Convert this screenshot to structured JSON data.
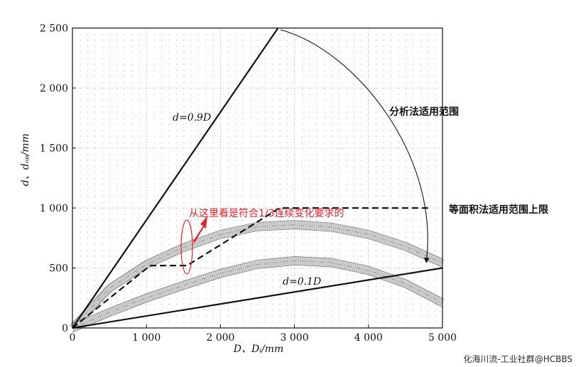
{
  "chart_data": {
    "type": "line",
    "title": "",
    "xlabel": "D、Dᵢ/mm",
    "ylabel": "d、dₒₚ/mm",
    "xlim": [
      0,
      5000
    ],
    "ylim": [
      0,
      2500
    ],
    "x_ticks": [
      "0",
      "1 000",
      "2 000",
      "3 000",
      "4 000",
      "5 000"
    ],
    "y_ticks": [
      "0",
      "500",
      "1 000",
      "1 500",
      "2 000",
      "2 500"
    ],
    "grid": "dotted",
    "series": [
      {
        "name": "d=0.9D",
        "style": "solid",
        "x": [
          0,
          2778
        ],
        "y": [
          0,
          2500
        ]
      },
      {
        "name": "d=0.1D",
        "style": "solid",
        "x": [
          0,
          5000
        ],
        "y": [
          0,
          500
        ]
      },
      {
        "name": "",
        "style": "dashed",
        "x": [
          0,
          1050,
          1550,
          2800,
          3000,
          4850
        ],
        "y": [
          0,
          520,
          520,
          1000,
          1000,
          1000
        ]
      }
    ],
    "bands": [
      {
        "style": "dotted-band",
        "x": [
          0,
          500,
          1000,
          1500,
          2000,
          2500,
          3000,
          3500,
          4000,
          4500,
          5000
        ],
        "y": [
          0,
          330,
          530,
          670,
          780,
          845,
          860,
          840,
          780,
          680,
          540
        ]
      },
      {
        "style": "dotted-band",
        "x": [
          0,
          500,
          1000,
          1500,
          2000,
          2500,
          3000,
          3500,
          4000,
          4500,
          5000
        ],
        "y": [
          0,
          130,
          250,
          355,
          455,
          530,
          560,
          545,
          480,
          370,
          210
        ]
      }
    ],
    "annotations": {
      "analysis_range": "分析法适用范围",
      "equal_area_limit": "等面积法适用范围上限",
      "red_note": "从这里看是符合1/3连续变化要求的"
    },
    "colors": {
      "line": "#111111",
      "band": "#9a9a9a",
      "note": "#e8202a",
      "grid": "#8a8a8a"
    }
  },
  "watermark": "化海川流-工业社群@HCBBS"
}
